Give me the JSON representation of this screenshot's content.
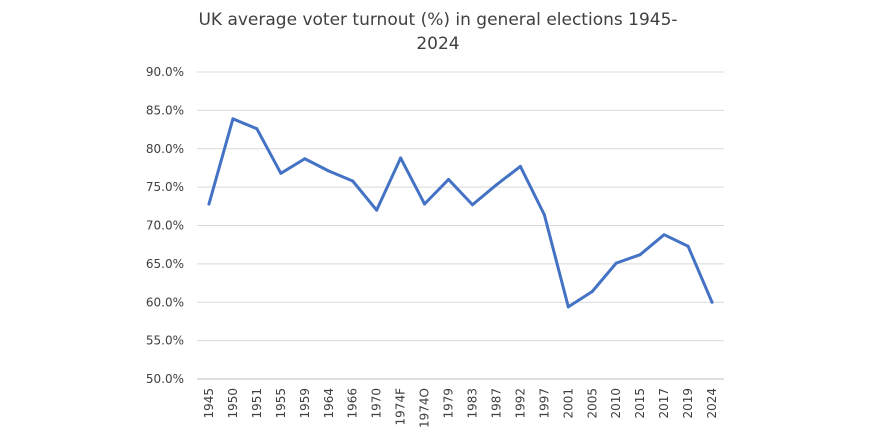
{
  "chart_data": {
    "type": "line",
    "title_lines": [
      "UK average voter turnout (%) in general elections 1945-",
      "2024"
    ],
    "xlabel": "",
    "ylabel": "",
    "categories": [
      "1945",
      "1950",
      "1951",
      "1955",
      "1959",
      "1964",
      "1966",
      "1970",
      "1974F",
      "1974O",
      "1979",
      "1983",
      "1987",
      "1992",
      "1997",
      "2001",
      "2005",
      "2010",
      "2015",
      "2017",
      "2019",
      "2024"
    ],
    "series": [
      {
        "values": [
          72.8,
          83.9,
          82.6,
          76.8,
          78.7,
          77.1,
          75.8,
          72.0,
          78.8,
          72.8,
          76.0,
          72.7,
          75.3,
          77.7,
          71.4,
          59.4,
          61.4,
          65.1,
          66.2,
          68.8,
          67.3,
          60.0
        ],
        "color": "#4472c4"
      }
    ],
    "ylim": [
      50,
      90
    ],
    "ytick_values": [
      50,
      55,
      60,
      65,
      70,
      75,
      80,
      85,
      90
    ],
    "ytick_labels": [
      "50.0%",
      "55.0%",
      "60.0%",
      "65.0%",
      "70.0%",
      "75.0%",
      "80.0%",
      "85.0%",
      "90.0%"
    ],
    "grid": true,
    "legend": "none"
  }
}
